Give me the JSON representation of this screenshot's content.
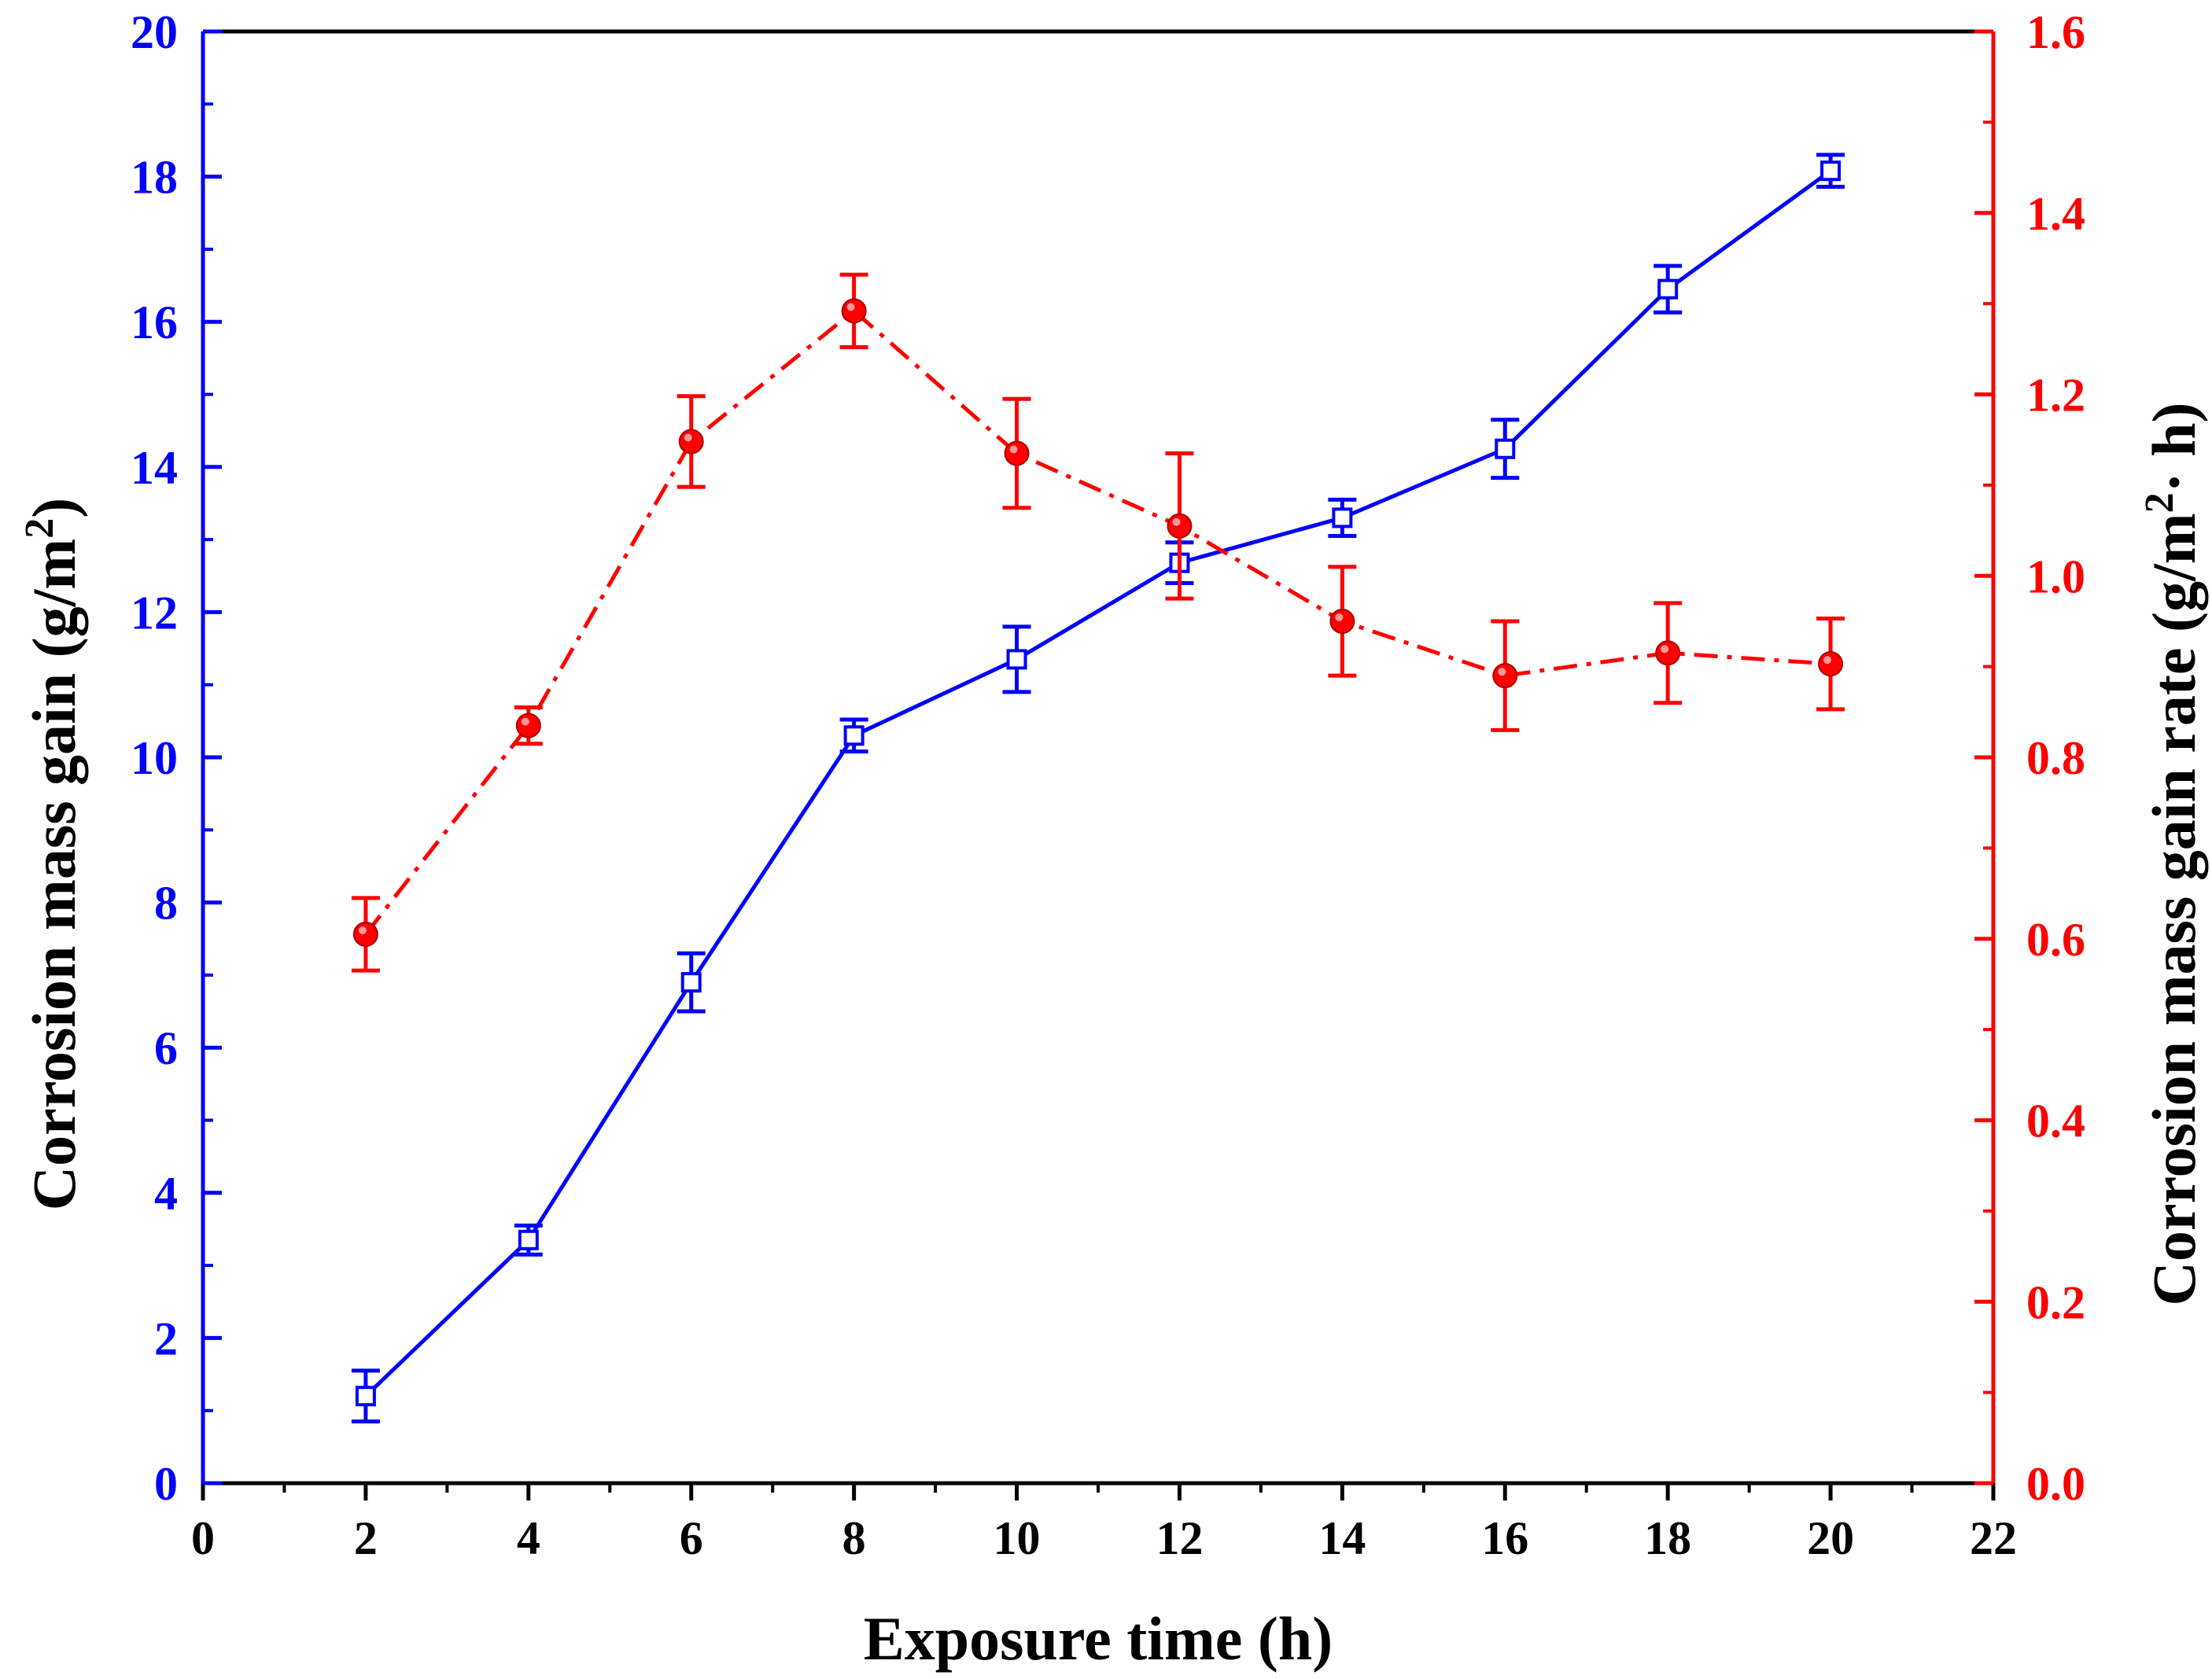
{
  "chart_data": {
    "type": "line",
    "title": "",
    "xlabel": "Exposure time (h)",
    "ylabel_left": "Corrosion mass gain (g/m²)",
    "ylabel_right": "Corrosion mass gain rate (g/m²· h)",
    "xlim": [
      0,
      22
    ],
    "ylim_left": [
      0,
      20
    ],
    "ylim_right": [
      0,
      1.6
    ],
    "x_ticks": [
      0,
      2,
      4,
      6,
      8,
      10,
      12,
      14,
      16,
      18,
      20,
      22
    ],
    "y_left_ticks": [
      0,
      2,
      4,
      6,
      8,
      10,
      12,
      14,
      16,
      18,
      20
    ],
    "y_right_ticks": [
      0.0,
      0.2,
      0.4,
      0.6,
      0.8,
      1.0,
      1.2,
      1.4,
      1.6
    ],
    "y_right_tick_labels": [
      "0.0",
      "0.2",
      "0.4",
      "0.6",
      "0.8",
      "1.0",
      "1.2",
      "1.4",
      "1.6"
    ],
    "grid": false,
    "series": [
      {
        "name": "Corrosion mass gain",
        "axis": "left",
        "color": "#0000ff",
        "marker": "open-square",
        "line_style": "solid",
        "x": [
          2,
          4,
          6,
          8,
          10,
          12,
          14,
          16,
          18,
          20
        ],
        "y": [
          1.2,
          3.35,
          6.9,
          10.3,
          11.35,
          12.68,
          13.3,
          14.25,
          16.45,
          18.08
        ],
        "err": [
          0.35,
          0.2,
          0.4,
          0.22,
          0.45,
          0.28,
          0.25,
          0.4,
          0.32,
          0.22
        ]
      },
      {
        "name": "Corrosion mass gain rate",
        "axis": "right",
        "color": "#ff0000",
        "marker": "filled-circle",
        "line_style": "dash-dot",
        "x": [
          2,
          4,
          6,
          8,
          10,
          12,
          14,
          16,
          18,
          20
        ],
        "y": [
          0.605,
          0.835,
          1.148,
          1.292,
          1.135,
          1.055,
          0.95,
          0.89,
          0.915,
          0.903
        ],
        "err": [
          0.04,
          0.02,
          0.05,
          0.04,
          0.06,
          0.08,
          0.06,
          0.06,
          0.055,
          0.05
        ]
      }
    ]
  }
}
